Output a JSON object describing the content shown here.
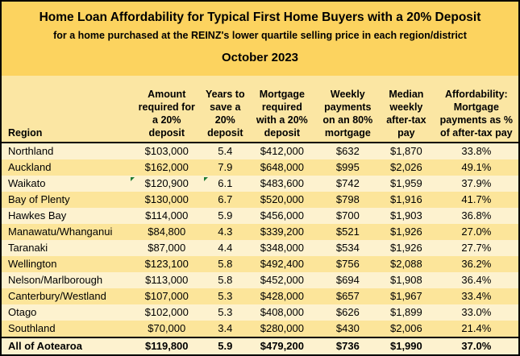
{
  "colors": {
    "title_bg": "#FCD35F",
    "header_bg": "#FBE6A3",
    "row_cream": "#FDF2CF",
    "row_yellow": "#FCE59A",
    "border": "#000000",
    "flag_green": "#1E7B34",
    "text": "#000000"
  },
  "header": {
    "title": "Home Loan Affordability for Typical First Home Buyers with a 20% Deposit",
    "subtitle": "for a home purchased at the REINZ's lower quartile selling price in each region/district",
    "date": "October 2023"
  },
  "table": {
    "columns": [
      {
        "key": "region",
        "label": "Region",
        "align": "left"
      },
      {
        "key": "amount",
        "label": "Amount\nrequired for\na 20%\ndeposit"
      },
      {
        "key": "years",
        "label": "Years to\nsave a\n20%\ndeposit"
      },
      {
        "key": "mortgage",
        "label": "Mortgage\nrequired\nwith a 20%\ndeposit"
      },
      {
        "key": "weekly",
        "label": "Weekly\npayments\non an 80%\nmortgage"
      },
      {
        "key": "median",
        "label": "Median\nweekly\nafter-tax\npay"
      },
      {
        "key": "afford",
        "label": "Affordability:\nMortgage\npayments as %\nof after-tax pay"
      }
    ],
    "rows": [
      {
        "region": "Northland",
        "amount": "$103,000",
        "years": "5.4",
        "mortgage": "$412,000",
        "weekly": "$632",
        "median": "$1,870",
        "afford": "33.8%"
      },
      {
        "region": "Auckland",
        "amount": "$162,000",
        "years": "7.9",
        "mortgage": "$648,000",
        "weekly": "$995",
        "median": "$2,026",
        "afford": "49.1%"
      },
      {
        "region": "Waikato",
        "amount": "$120,900",
        "years": "6.1",
        "mortgage": "$483,600",
        "weekly": "$742",
        "median": "$1,959",
        "afford": "37.9%",
        "flags": [
          "amount",
          "years"
        ]
      },
      {
        "region": "Bay of Plenty",
        "amount": "$130,000",
        "years": "6.7",
        "mortgage": "$520,000",
        "weekly": "$798",
        "median": "$1,916",
        "afford": "41.7%"
      },
      {
        "region": "Hawkes Bay",
        "amount": "$114,000",
        "years": "5.9",
        "mortgage": "$456,000",
        "weekly": "$700",
        "median": "$1,903",
        "afford": "36.8%"
      },
      {
        "region": "Manawatu/Whanganui",
        "amount": "$84,800",
        "years": "4.3",
        "mortgage": "$339,200",
        "weekly": "$521",
        "median": "$1,926",
        "afford": "27.0%"
      },
      {
        "region": "Taranaki",
        "amount": "$87,000",
        "years": "4.4",
        "mortgage": "$348,000",
        "weekly": "$534",
        "median": "$1,926",
        "afford": "27.7%"
      },
      {
        "region": "Wellington",
        "amount": "$123,100",
        "years": "5.8",
        "mortgage": "$492,400",
        "weekly": "$756",
        "median": "$2,088",
        "afford": "36.2%"
      },
      {
        "region": "Nelson/Marlborough",
        "amount": "$113,000",
        "years": "5.8",
        "mortgage": "$452,000",
        "weekly": "$694",
        "median": "$1,908",
        "afford": "36.4%"
      },
      {
        "region": "Canterbury/Westland",
        "amount": "$107,000",
        "years": "5.3",
        "mortgage": "$428,000",
        "weekly": "$657",
        "median": "$1,967",
        "afford": "33.4%"
      },
      {
        "region": "Otago",
        "amount": "$102,000",
        "years": "5.3",
        "mortgage": "$408,000",
        "weekly": "$626",
        "median": "$1,899",
        "afford": "33.0%"
      },
      {
        "region": "Southland",
        "amount": "$70,000",
        "years": "3.4",
        "mortgage": "$280,000",
        "weekly": "$430",
        "median": "$2,006",
        "afford": "21.4%"
      }
    ],
    "total": {
      "region": "All of Aotearoa",
      "amount": "$119,800",
      "years": "5.9",
      "mortgage": "$479,200",
      "weekly": "$736",
      "median": "$1,990",
      "afford": "37.0%"
    }
  },
  "chart_data": {
    "type": "table",
    "title": "Home Loan Affordability for Typical First Home Buyers with a 20% Deposit",
    "subtitle": "for a home purchased at the REINZ's lower quartile selling price in each region/district",
    "period": "October 2023",
    "columns": [
      "Region",
      "Amount required for a 20% deposit",
      "Years to save a 20% deposit",
      "Mortgage required with a 20% deposit",
      "Weekly payments on an 80% mortgage",
      "Median weekly after-tax pay",
      "Affordability: Mortgage payments as % of after-tax pay"
    ],
    "rows": [
      [
        "Northland",
        103000,
        5.4,
        412000,
        632,
        1870,
        33.8
      ],
      [
        "Auckland",
        162000,
        7.9,
        648000,
        995,
        2026,
        49.1
      ],
      [
        "Waikato",
        120900,
        6.1,
        483600,
        742,
        1959,
        37.9
      ],
      [
        "Bay of Plenty",
        130000,
        6.7,
        520000,
        798,
        1916,
        41.7
      ],
      [
        "Hawkes Bay",
        114000,
        5.9,
        456000,
        700,
        1903,
        36.8
      ],
      [
        "Manawatu/Whanganui",
        84800,
        4.3,
        339200,
        521,
        1926,
        27.0
      ],
      [
        "Taranaki",
        87000,
        4.4,
        348000,
        534,
        1926,
        27.7
      ],
      [
        "Wellington",
        123100,
        5.8,
        492400,
        756,
        2088,
        36.2
      ],
      [
        "Nelson/Marlborough",
        113000,
        5.8,
        452000,
        694,
        1908,
        36.4
      ],
      [
        "Canterbury/Westland",
        107000,
        5.3,
        428000,
        657,
        1967,
        33.4
      ],
      [
        "Otago",
        102000,
        5.3,
        408000,
        626,
        1899,
        33.0
      ],
      [
        "Southland",
        70000,
        3.4,
        280000,
        430,
        2006,
        21.4
      ],
      [
        "All of Aotearoa",
        119800,
        5.9,
        479200,
        736,
        1990,
        37.0
      ]
    ]
  }
}
